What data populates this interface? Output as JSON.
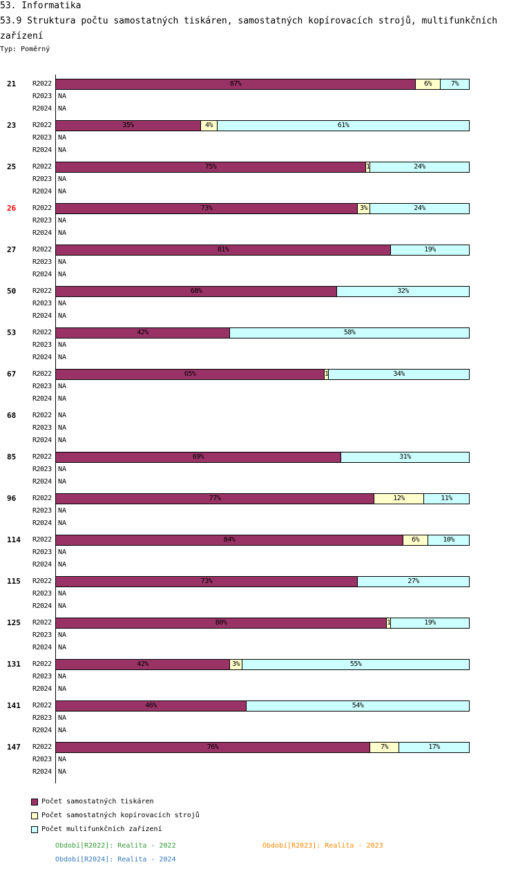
{
  "header": {
    "section": "53. Informatika",
    "title": "53.9 Struktura počtu samostatných tiskáren, samostatných kopírovacích strojů, multifunkčních zařízení",
    "type": "Typ: Poměrný"
  },
  "chart_data": {
    "type": "bar",
    "stacked": true,
    "orientation": "horizontal",
    "xlim": [
      0,
      100
    ],
    "periods": [
      "R2022",
      "R2023",
      "R2024"
    ],
    "na_label": "NA",
    "series": [
      {
        "name": "Počet samostatných tiskáren",
        "color": "#993366"
      },
      {
        "name": "Počet samostatných kopírovacích strojů",
        "color": "#ffffcc"
      },
      {
        "name": "Počet multifunkčních zařízení",
        "color": "#ccffff"
      }
    ],
    "groups": [
      {
        "label": "21",
        "highlight": false,
        "values": [
          87,
          6,
          7
        ],
        "labels": [
          "87%",
          "6%",
          "7%"
        ]
      },
      {
        "label": "23",
        "highlight": false,
        "values": [
          35,
          4,
          61
        ],
        "labels": [
          "35%",
          "4%",
          "61%"
        ]
      },
      {
        "label": "25",
        "highlight": false,
        "values": [
          75,
          1,
          24
        ],
        "labels": [
          "75%",
          "1",
          "24%"
        ]
      },
      {
        "label": "26",
        "highlight": true,
        "values": [
          73,
          3,
          24
        ],
        "labels": [
          "73%",
          "3%",
          "24%"
        ]
      },
      {
        "label": "27",
        "highlight": false,
        "values": [
          81,
          0,
          19
        ],
        "labels": [
          "81%",
          "",
          "19%"
        ]
      },
      {
        "label": "50",
        "highlight": false,
        "values": [
          68,
          0,
          32
        ],
        "labels": [
          "68%",
          "",
          "32%"
        ]
      },
      {
        "label": "53",
        "highlight": false,
        "values": [
          42,
          0,
          58
        ],
        "labels": [
          "42%",
          "",
          "58%"
        ]
      },
      {
        "label": "67",
        "highlight": false,
        "values": [
          65,
          1,
          34
        ],
        "labels": [
          "65%",
          "1",
          "34%"
        ]
      },
      {
        "label": "68",
        "highlight": false,
        "values": null,
        "labels": null
      },
      {
        "label": "85",
        "highlight": false,
        "values": [
          69,
          0,
          31
        ],
        "labels": [
          "69%",
          "",
          "31%"
        ]
      },
      {
        "label": "96",
        "highlight": false,
        "values": [
          77,
          12,
          11
        ],
        "labels": [
          "77%",
          "12%",
          "11%"
        ]
      },
      {
        "label": "114",
        "highlight": false,
        "values": [
          84,
          6,
          10
        ],
        "labels": [
          "84%",
          "6%",
          "10%"
        ]
      },
      {
        "label": "115",
        "highlight": false,
        "values": [
          73,
          0,
          27
        ],
        "labels": [
          "73%",
          "",
          "27%"
        ]
      },
      {
        "label": "125",
        "highlight": false,
        "values": [
          80,
          1,
          19
        ],
        "labels": [
          "80%",
          "1",
          "19%"
        ]
      },
      {
        "label": "131",
        "highlight": false,
        "values": [
          42,
          3,
          55
        ],
        "labels": [
          "42%",
          "3%",
          "55%"
        ]
      },
      {
        "label": "141",
        "highlight": false,
        "values": [
          46,
          0,
          54
        ],
        "labels": [
          "46%",
          "",
          "54%"
        ]
      },
      {
        "label": "147",
        "highlight": false,
        "values": [
          76,
          7,
          17
        ],
        "labels": [
          "76%",
          "7%",
          "17%"
        ]
      }
    ]
  },
  "period_legend": [
    {
      "text": "Období[R2022]: Realita - 2022",
      "color": "#339933"
    },
    {
      "text": "Období[R2023]: Realita - 2023",
      "color": "#ff8800"
    },
    {
      "text": "Období[R2024]: Realita - 2024",
      "color": "#3377bb"
    }
  ],
  "highlight_color": "#ff0000"
}
